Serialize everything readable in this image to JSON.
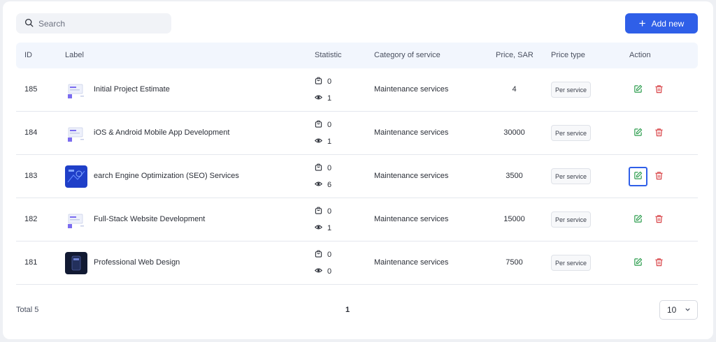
{
  "search": {
    "placeholder": "Search"
  },
  "add_button": {
    "label": "Add new"
  },
  "columns": {
    "id": "ID",
    "label": "Label",
    "statistic": "Statistic",
    "category": "Category of service",
    "price": "Price, SAR",
    "price_type": "Price type",
    "action": "Action"
  },
  "rows": [
    {
      "id": "185",
      "label": "Initial Project Estimate",
      "orders": "0",
      "views": "1",
      "category": "Maintenance services",
      "price": "4",
      "price_type": "Per service",
      "thumb": "light"
    },
    {
      "id": "184",
      "label": "iOS & Android Mobile App Development",
      "orders": "0",
      "views": "1",
      "category": "Maintenance services",
      "price": "30000",
      "price_type": "Per service",
      "thumb": "light"
    },
    {
      "id": "183",
      "label": "earch Engine Optimization (SEO) Services",
      "orders": "0",
      "views": "6",
      "category": "Maintenance services",
      "price": "3500",
      "price_type": "Per service",
      "thumb": "blue"
    },
    {
      "id": "182",
      "label": "Full-Stack Website Development",
      "orders": "0",
      "views": "1",
      "category": "Maintenance services",
      "price": "15000",
      "price_type": "Per service",
      "thumb": "light"
    },
    {
      "id": "181",
      "label": "Professional Web Design",
      "orders": "0",
      "views": "0",
      "category": "Maintenance services",
      "price": "7500",
      "price_type": "Per service",
      "thumb": "dark"
    }
  ],
  "footer": {
    "total": "Total 5",
    "current_page": "1",
    "page_size": "10"
  },
  "colors": {
    "primary": "#2f5fe8",
    "edit": "#2e9e4f",
    "delete": "#d9464a",
    "header_bg": "#f2f6fd"
  }
}
